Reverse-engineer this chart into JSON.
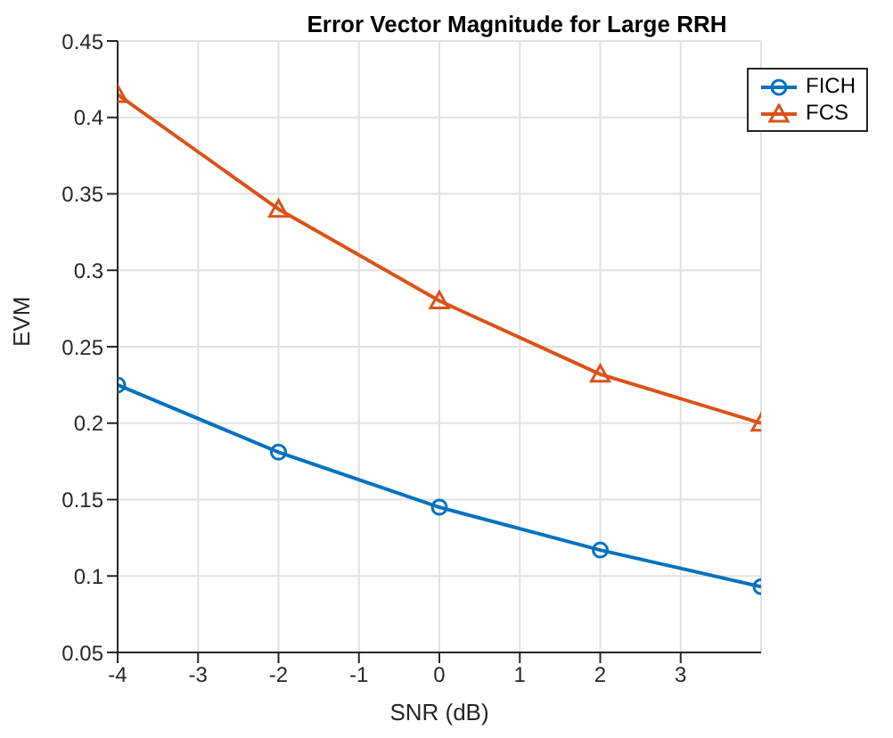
{
  "chart_data": {
    "type": "line",
    "title": "Error Vector Magnitude for Large RRH",
    "xlabel": "SNR (dB)",
    "ylabel": "EVM",
    "x": [
      -4,
      -2,
      0,
      2,
      4
    ],
    "series": [
      {
        "name": "FICH",
        "color": "#0072bd",
        "values": [
          0.225,
          0.181,
          0.145,
          0.117,
          0.093
        ],
        "marker": "circle"
      },
      {
        "name": "FCS",
        "color": "#d95319",
        "values": [
          0.415,
          0.34,
          0.28,
          0.232,
          0.2
        ],
        "marker": "triangle"
      }
    ],
    "xlim": [
      -4,
      4
    ],
    "xticks": [
      -4,
      -3,
      -2,
      -1,
      0,
      1,
      2,
      3
    ],
    "ylim": [
      0.05,
      0.45
    ],
    "yticks": [
      0.05,
      0.1,
      0.15,
      0.2,
      0.25,
      0.3,
      0.35,
      0.4,
      0.45
    ],
    "grid": true,
    "legend": "top right",
    "line_style": "solid"
  }
}
